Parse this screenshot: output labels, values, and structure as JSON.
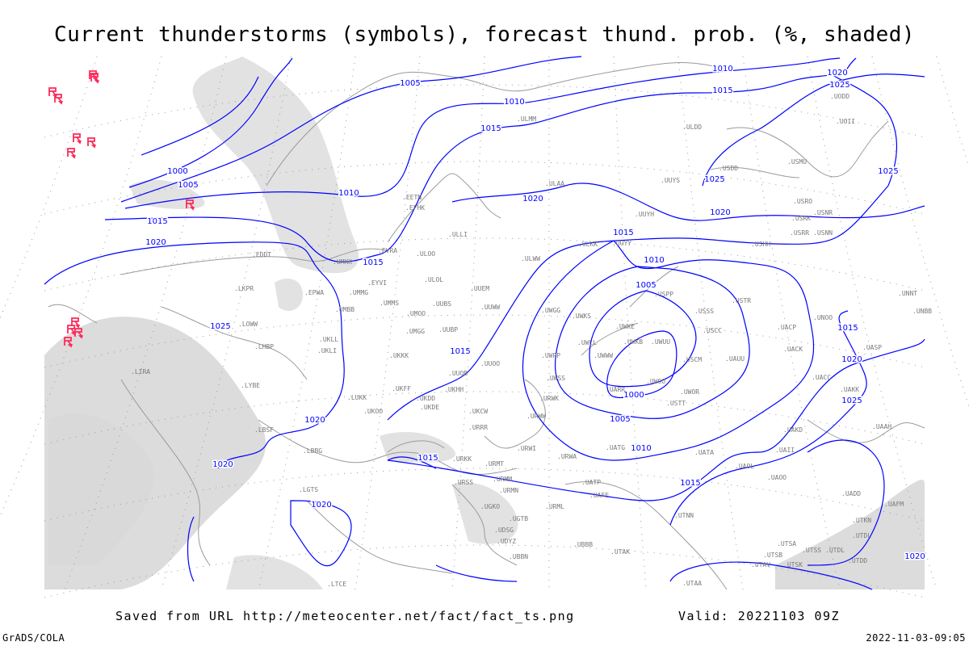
{
  "title": "Current thunderstorms (symbols), forecast thund. prob. (%, shaded)",
  "footer": {
    "saved": "Saved from URL http://meteocenter.net/fact/fact_ts.png",
    "valid": "Valid: 20221103 09Z",
    "software": "GrADS/COLA",
    "timestamp": "2022-11-03-09:05"
  },
  "colors": {
    "isobar": "#0000ff",
    "station": "#7a7a7a",
    "coast": "#9a9a9a",
    "thunderstorm": "#ff2a5a",
    "shading": "#d8d8d8"
  },
  "isobar_labels": [
    "1005",
    "1000",
    "1005",
    "1010",
    "1010",
    "1010",
    "1015",
    "1015",
    "1015",
    "1020",
    "1020",
    "1020",
    "1025",
    "1015",
    "1010",
    "1005",
    "1000",
    "1005",
    "1010",
    "1015",
    "1015",
    "1020",
    "1020",
    "1025",
    "1025",
    "1025",
    "1020",
    "1015",
    "1020",
    "1015",
    "1020",
    "1025",
    "1015",
    "1020"
  ],
  "stations": [
    "UMKK",
    "EYVI",
    "UMMG",
    "UMBB",
    "UMMS",
    "UMOO",
    "UUBS",
    "UUEM",
    "UUWW",
    "ULOL",
    "ULOO",
    "ULLI",
    "EVRA",
    "EETN",
    "EFHK",
    "ULAA",
    "ULMM",
    "UUYS",
    "UUYH",
    "ULKK",
    "UUYY",
    "ULWW",
    "UWGG",
    "UWKS",
    "UWKE",
    "UWLL",
    "UWKB",
    "UWUU",
    "UWWW",
    "UWPP",
    "UWSS",
    "UWOO",
    "UARR",
    "URWK",
    "URWW",
    "UMGG",
    "UUBP",
    "UKKK",
    "UUOO",
    "UUOB",
    "UKHH",
    "UKDD",
    "UKFF",
    "UKDE",
    "UKOO",
    "LUKK",
    "UKCW",
    "URRR",
    "URWI",
    "URKK",
    "URMT",
    "URMM",
    "USPP",
    "USSS",
    "USCC",
    "USCM",
    "UAUU",
    "USTR",
    "USTT",
    "UWOR",
    "UATG",
    "UATA",
    "UAOL",
    "UAOO",
    "UAKD",
    "UACC",
    "UAKK",
    "UASP",
    "UACP",
    "UNOO",
    "UACK",
    "UNBB",
    "UNNT",
    "USHH",
    "USRR",
    "USNN",
    "USRK",
    "USNR",
    "USRO",
    "USDD",
    "USMU",
    "ULDD",
    "UODD",
    "UOII",
    "URWA",
    "UATP",
    "UAFE",
    "URML",
    "UGTB",
    "UBBB",
    "UBBN",
    "UDSG",
    "UGKO",
    "URSS",
    "URMN",
    "UDYZ",
    "UTAK",
    "UTNN",
    "UTSA",
    "UTSB",
    "UTSS",
    "UTAV",
    "UTSK",
    "UTDD",
    "UTDL",
    "UTKN",
    "UAFM",
    "UADD",
    "UAAH",
    "UTAA",
    "LYBE",
    "LBSF",
    "LBBG",
    "LHBP",
    "LKPR",
    "EDDT",
    "LOWW",
    "LIRA",
    "UKLL",
    "UKLI",
    "EPWA",
    "LGTS",
    "LTCE",
    "UAII",
    "UTDL"
  ],
  "thunderstorms": {
    "symbol": "thunderstorm-symbol",
    "count": 12
  }
}
